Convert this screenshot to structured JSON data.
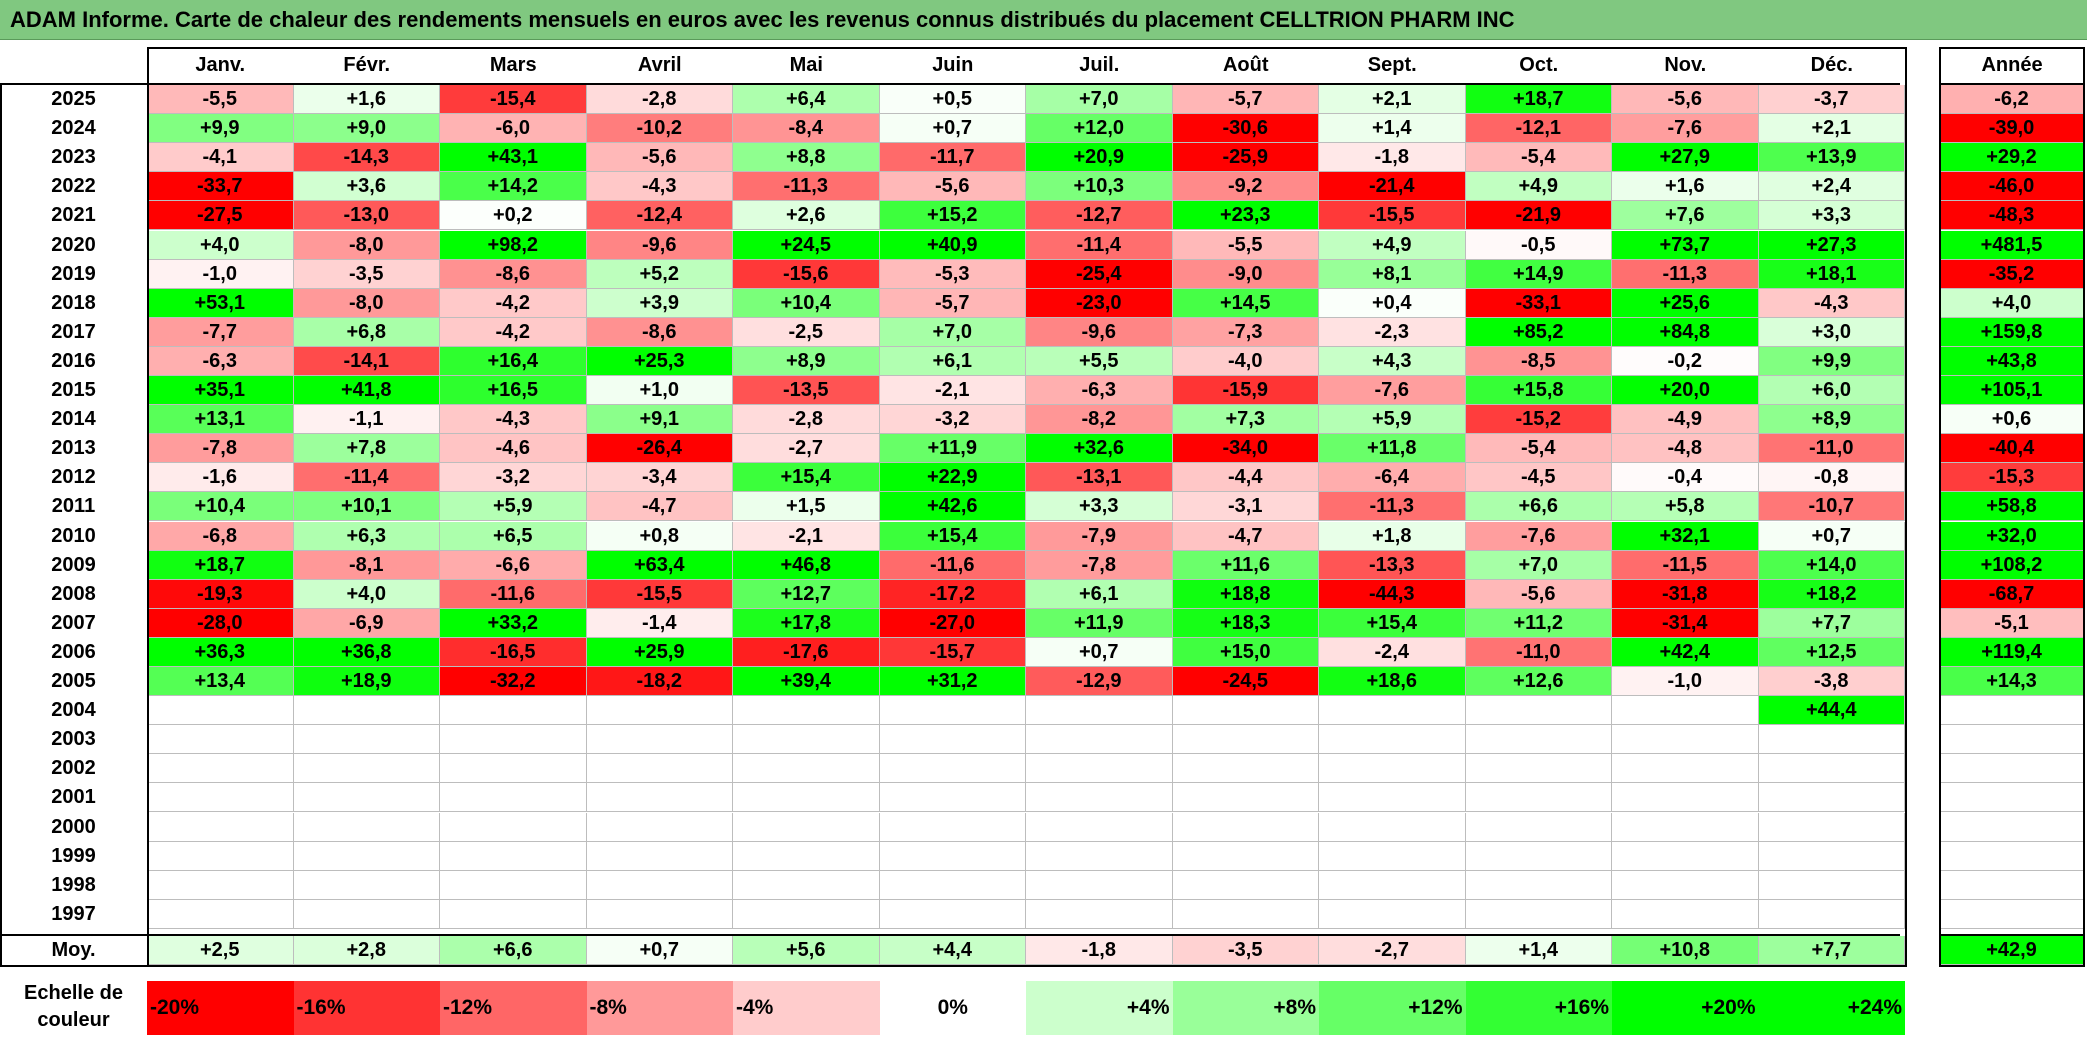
{
  "title": "ADAM Informe. Carte de chaleur des rendements mensuels en euros avec les revenus connus distribués du placement CELLTRION PHARM INC",
  "months": [
    "Janv.",
    "Févr.",
    "Mars",
    "Avril",
    "Mai",
    "Juin",
    "Juil.",
    "Août",
    "Sept.",
    "Oct.",
    "Nov.",
    "Déc."
  ],
  "year_header": "Année",
  "average_label": "Moy.",
  "scale_label": "Echelle de couleur",
  "colors": {
    "title_bar": "#80c880",
    "negative_max": "#ff0000",
    "neutral": "#ffffff",
    "positive_max": "#00ff00"
  },
  "chart_data": {
    "type": "heatmap",
    "title": "ADAM Informe. Carte de chaleur des rendements mensuels en euros avec les revenus connus distribués du placement CELLTRION PHARM INC",
    "columns": [
      "Janv.",
      "Févr.",
      "Mars",
      "Avril",
      "Mai",
      "Juin",
      "Juil.",
      "Août",
      "Sept.",
      "Oct.",
      "Nov.",
      "Déc."
    ],
    "rows": [
      {
        "year": "2025",
        "months": [
          "-5,5",
          "+1,6",
          "-15,4",
          "-2,8",
          "+6,4",
          "+0,5",
          "+7,0",
          "-5,7",
          "+2,1",
          "+18,7",
          "-5,6",
          "-3,7"
        ],
        "annual": "-6,2"
      },
      {
        "year": "2024",
        "months": [
          "+9,9",
          "+9,0",
          "-6,0",
          "-10,2",
          "-8,4",
          "+0,7",
          "+12,0",
          "-30,6",
          "+1,4",
          "-12,1",
          "-7,6",
          "+2,1"
        ],
        "annual": "-39,0"
      },
      {
        "year": "2023",
        "months": [
          "-4,1",
          "-14,3",
          "+43,1",
          "-5,6",
          "+8,8",
          "-11,7",
          "+20,9",
          "-25,9",
          "-1,8",
          "-5,4",
          "+27,9",
          "+13,9"
        ],
        "annual": "+29,2"
      },
      {
        "year": "2022",
        "months": [
          "-33,7",
          "+3,6",
          "+14,2",
          "-4,3",
          "-11,3",
          "-5,6",
          "+10,3",
          "-9,2",
          "-21,4",
          "+4,9",
          "+1,6",
          "+2,4"
        ],
        "annual": "-46,0"
      },
      {
        "year": "2021",
        "months": [
          "-27,5",
          "-13,0",
          "+0,2",
          "-12,4",
          "+2,6",
          "+15,2",
          "-12,7",
          "+23,3",
          "-15,5",
          "-21,9",
          "+7,6",
          "+3,3"
        ],
        "annual": "-48,3"
      },
      {
        "year": "2020",
        "months": [
          "+4,0",
          "-8,0",
          "+98,2",
          "-9,6",
          "+24,5",
          "+40,9",
          "-11,4",
          "-5,5",
          "+4,9",
          "-0,5",
          "+73,7",
          "+27,3"
        ],
        "annual": "+481,5"
      },
      {
        "year": "2019",
        "months": [
          "-1,0",
          "-3,5",
          "-8,6",
          "+5,2",
          "-15,6",
          "-5,3",
          "-25,4",
          "-9,0",
          "+8,1",
          "+14,9",
          "-11,3",
          "+18,1"
        ],
        "annual": "-35,2"
      },
      {
        "year": "2018",
        "months": [
          "+53,1",
          "-8,0",
          "-4,2",
          "+3,9",
          "+10,4",
          "-5,7",
          "-23,0",
          "+14,5",
          "+0,4",
          "-33,1",
          "+25,6",
          "-4,3"
        ],
        "annual": "+4,0"
      },
      {
        "year": "2017",
        "months": [
          "-7,7",
          "+6,8",
          "-4,2",
          "-8,6",
          "-2,5",
          "+7,0",
          "-9,6",
          "-7,3",
          "-2,3",
          "+85,2",
          "+84,8",
          "+3,0"
        ],
        "annual": "+159,8"
      },
      {
        "year": "2016",
        "months": [
          "-6,3",
          "-14,1",
          "+16,4",
          "+25,3",
          "+8,9",
          "+6,1",
          "+5,5",
          "-4,0",
          "+4,3",
          "-8,5",
          "-0,2",
          "+9,9"
        ],
        "annual": "+43,8"
      },
      {
        "year": "2015",
        "months": [
          "+35,1",
          "+41,8",
          "+16,5",
          "+1,0",
          "-13,5",
          "-2,1",
          "-6,3",
          "-15,9",
          "-7,6",
          "+15,8",
          "+20,0",
          "+6,0"
        ],
        "annual": "+105,1"
      },
      {
        "year": "2014",
        "months": [
          "+13,1",
          "-1,1",
          "-4,3",
          "+9,1",
          "-2,8",
          "-3,2",
          "-8,2",
          "+7,3",
          "+5,9",
          "-15,2",
          "-4,9",
          "+8,9"
        ],
        "annual": "+0,6"
      },
      {
        "year": "2013",
        "months": [
          "-7,8",
          "+7,8",
          "-4,6",
          "-26,4",
          "-2,7",
          "+11,9",
          "+32,6",
          "-34,0",
          "+11,8",
          "-5,4",
          "-4,8",
          "-11,0"
        ],
        "annual": "-40,4"
      },
      {
        "year": "2012",
        "months": [
          "-1,6",
          "-11,4",
          "-3,2",
          "-3,4",
          "+15,4",
          "+22,9",
          "-13,1",
          "-4,4",
          "-6,4",
          "-4,5",
          "-0,4",
          "-0,8"
        ],
        "annual": "-15,3"
      },
      {
        "year": "2011",
        "months": [
          "+10,4",
          "+10,1",
          "+5,9",
          "-4,7",
          "+1,5",
          "+42,6",
          "+3,3",
          "-3,1",
          "-11,3",
          "+6,6",
          "+5,8",
          "-10,7"
        ],
        "annual": "+58,8"
      },
      {
        "year": "2010",
        "months": [
          "-6,8",
          "+6,3",
          "+6,5",
          "+0,8",
          "-2,1",
          "+15,4",
          "-7,9",
          "-4,7",
          "+1,8",
          "-7,6",
          "+32,1",
          "+0,7"
        ],
        "annual": "+32,0"
      },
      {
        "year": "2009",
        "months": [
          "+18,7",
          "-8,1",
          "-6,6",
          "+63,4",
          "+46,8",
          "-11,6",
          "-7,8",
          "+11,6",
          "-13,3",
          "+7,0",
          "-11,5",
          "+14,0"
        ],
        "annual": "+108,2"
      },
      {
        "year": "2008",
        "months": [
          "-19,3",
          "+4,0",
          "-11,6",
          "-15,5",
          "+12,7",
          "-17,2",
          "+6,1",
          "+18,8",
          "-44,3",
          "-5,6",
          "-31,8",
          "+18,2"
        ],
        "annual": "-68,7"
      },
      {
        "year": "2007",
        "months": [
          "-28,0",
          "-6,9",
          "+33,2",
          "-1,4",
          "+17,8",
          "-27,0",
          "+11,9",
          "+18,3",
          "+15,4",
          "+11,2",
          "-31,4",
          "+7,7"
        ],
        "annual": "-5,1"
      },
      {
        "year": "2006",
        "months": [
          "+36,3",
          "+36,8",
          "-16,5",
          "+25,9",
          "-17,6",
          "-15,7",
          "+0,7",
          "+15,0",
          "-2,4",
          "-11,0",
          "+42,4",
          "+12,5"
        ],
        "annual": "+119,4"
      },
      {
        "year": "2005",
        "months": [
          "+13,4",
          "+18,9",
          "-32,2",
          "-18,2",
          "+39,4",
          "+31,2",
          "-12,9",
          "-24,5",
          "+18,6",
          "+12,6",
          "-1,0",
          "-3,8"
        ],
        "annual": "+14,3"
      },
      {
        "year": "2004",
        "months": [
          "",
          "",
          "",
          "",
          "",
          "",
          "",
          "",
          "",
          "",
          "",
          "+44,4"
        ],
        "annual": ""
      },
      {
        "year": "2003",
        "months": [
          "",
          "",
          "",
          "",
          "",
          "",
          "",
          "",
          "",
          "",
          "",
          ""
        ],
        "annual": ""
      },
      {
        "year": "2002",
        "months": [
          "",
          "",
          "",
          "",
          "",
          "",
          "",
          "",
          "",
          "",
          "",
          ""
        ],
        "annual": ""
      },
      {
        "year": "2001",
        "months": [
          "",
          "",
          "",
          "",
          "",
          "",
          "",
          "",
          "",
          "",
          "",
          ""
        ],
        "annual": ""
      },
      {
        "year": "2000",
        "months": [
          "",
          "",
          "",
          "",
          "",
          "",
          "",
          "",
          "",
          "",
          "",
          ""
        ],
        "annual": ""
      },
      {
        "year": "1999",
        "months": [
          "",
          "",
          "",
          "",
          "",
          "",
          "",
          "",
          "",
          "",
          "",
          ""
        ],
        "annual": ""
      },
      {
        "year": "1998",
        "months": [
          "",
          "",
          "",
          "",
          "",
          "",
          "",
          "",
          "",
          "",
          "",
          ""
        ],
        "annual": ""
      },
      {
        "year": "1997",
        "months": [
          "",
          "",
          "",
          "",
          "",
          "",
          "",
          "",
          "",
          "",
          "",
          ""
        ],
        "annual": ""
      }
    ],
    "average": {
      "months": [
        "+2,5",
        "+2,8",
        "+6,6",
        "+0,7",
        "+5,6",
        "+4,4",
        "-1,8",
        "-3,5",
        "-2,7",
        "+1,4",
        "+10,8",
        "+7,7"
      ],
      "annual": "+42,9"
    },
    "color_scale": [
      "-20%",
      "-16%",
      "-12%",
      "-8%",
      "-4%",
      "0%",
      "+4%",
      "+8%",
      "+12%",
      "+16%",
      "+20%",
      "+24%"
    ]
  }
}
